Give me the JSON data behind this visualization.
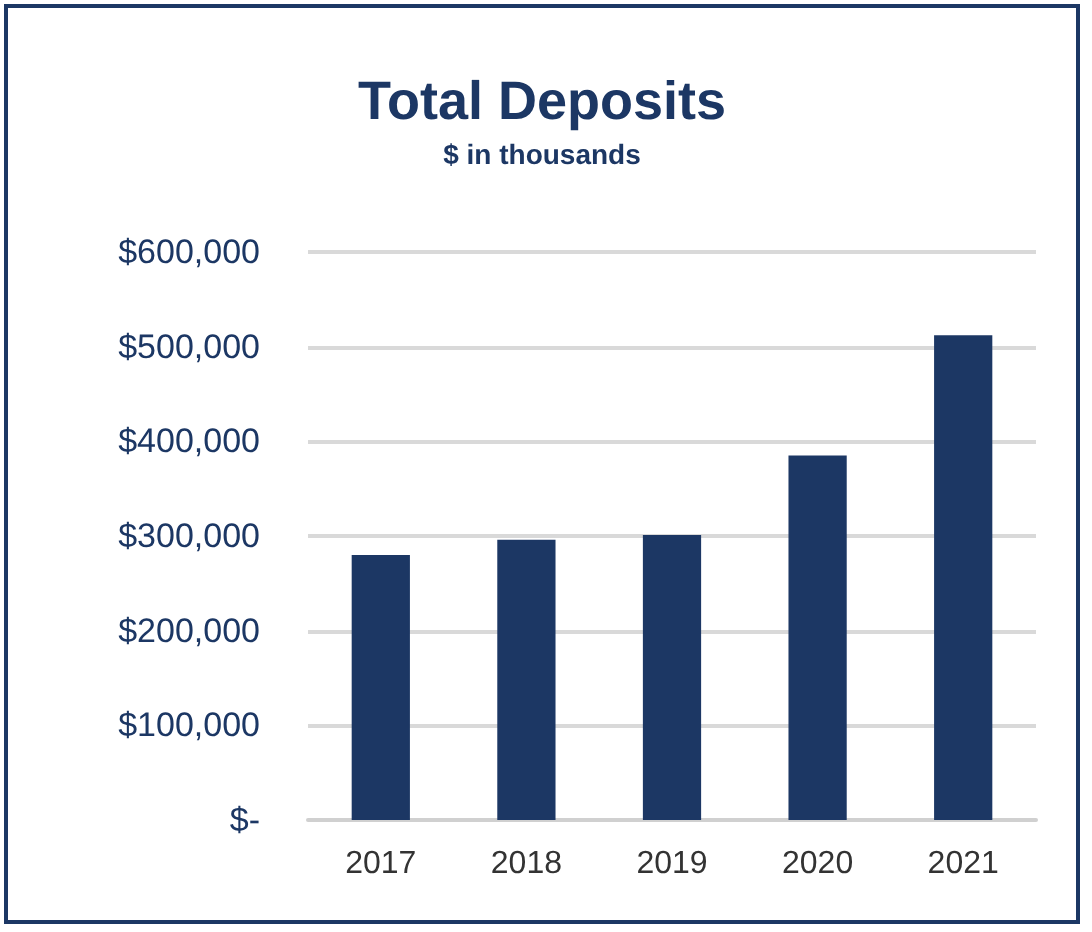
{
  "chart_data": {
    "type": "bar",
    "title": "Total Deposits",
    "subtitle": "$ in thousands",
    "categories": [
      "2017",
      "2018",
      "2019",
      "2020",
      "2021"
    ],
    "values": [
      280000,
      296000,
      301000,
      385000,
      512000
    ],
    "color": "#1c3764",
    "ylim": [
      0,
      600000
    ],
    "yticks": [
      {
        "value": 0,
        "label": "$-"
      },
      {
        "value": 100000,
        "label": "$100,000"
      },
      {
        "value": 200000,
        "label": "$200,000"
      },
      {
        "value": 300000,
        "label": "$300,000"
      },
      {
        "value": 400000,
        "label": "$400,000"
      },
      {
        "value": 500000,
        "label": "$500,000"
      },
      {
        "value": 600000,
        "label": "$600,000"
      }
    ],
    "grid": true
  }
}
